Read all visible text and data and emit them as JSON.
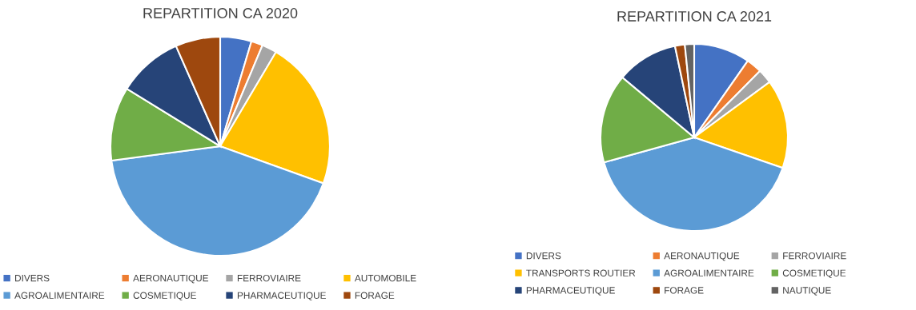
{
  "chart_data": [
    {
      "type": "pie",
      "title": "REPARTITION CA 2020",
      "legend": "bottom",
      "categories": [
        "DIVERS",
        "AERONAUTIQUE",
        "FERROVIAIRE",
        "AUTOMOBILE",
        "AGROALIMENTAIRE",
        "COSMETIQUE",
        "PHARMACEUTIQUE",
        "FORAGE"
      ],
      "values": [
        4.6,
        1.7,
        2.2,
        22.0,
        42.4,
        10.9,
        9.6,
        6.6
      ],
      "colors": [
        "#4472c4",
        "#ed7d31",
        "#a5a5a5",
        "#ffc000",
        "#5b9bd5",
        "#70ad47",
        "#264478",
        "#9e480e"
      ]
    },
    {
      "type": "pie",
      "title": "REPARTITION CA 2021",
      "legend": "bottom",
      "categories": [
        "DIVERS",
        "AERONAUTIQUE",
        "FERROVIAIRE",
        "TRANSPORTS ROUTIER",
        "AGROALIMENTAIRE",
        "COSMETIQUE",
        "PHARMACEUTIQUE",
        "FORAGE",
        "NAUTIQUE"
      ],
      "values": [
        9.7,
        2.7,
        2.5,
        15.4,
        40.4,
        15.4,
        10.6,
        1.7,
        1.6
      ],
      "colors": [
        "#4472c4",
        "#ed7d31",
        "#a5a5a5",
        "#ffc000",
        "#5b9bd5",
        "#70ad47",
        "#264478",
        "#9e480e",
        "#636363"
      ]
    }
  ]
}
